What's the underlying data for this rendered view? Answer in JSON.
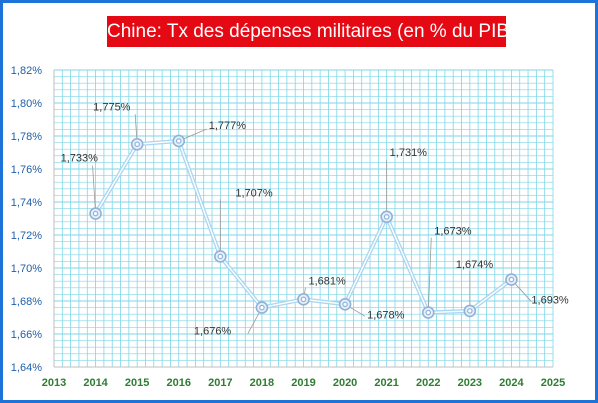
{
  "chart_data": {
    "type": "line",
    "title": "Chine: Tx des dépenses militaires (en % du PIB)",
    "x": [
      2014,
      2015,
      2016,
      2017,
      2018,
      2019,
      2020,
      2021,
      2022,
      2023,
      2024
    ],
    "x_ticks": [
      "2013",
      "2014",
      "2015",
      "2016",
      "2017",
      "2018",
      "2019",
      "2020",
      "2021",
      "2022",
      "2023",
      "2024",
      "2025"
    ],
    "y_ticks": [
      "1,64%",
      "1,66%",
      "1,68%",
      "1,70%",
      "1,72%",
      "1,74%",
      "1,76%",
      "1,78%",
      "1,80%",
      "1,82%"
    ],
    "xlim": [
      2013,
      2025
    ],
    "ylim": [
      1.64,
      1.82
    ],
    "series": [
      {
        "values": [
          1.733,
          1.775,
          1.777,
          1.707,
          1.676,
          1.681,
          1.678,
          1.731,
          1.673,
          1.674,
          1.693
        ],
        "labels": [
          "1,733%",
          "1,775%",
          "1,777%",
          "1,707%",
          "1,676%",
          "1,681%",
          "1,678%",
          "1,731%",
          "1,673%",
          "1,674%",
          "1,693%"
        ]
      }
    ],
    "grid": true,
    "colors": {
      "frame": "#1e73d8",
      "title_bg": "#e50914",
      "title_text": "#ffffff",
      "grid": "#7fd6e6",
      "line": "#a9d6f0",
      "marker": "#8fb2d8",
      "ytick": "#1f5fa8",
      "xtick": "#2e7d32",
      "leader": "#999999"
    }
  }
}
